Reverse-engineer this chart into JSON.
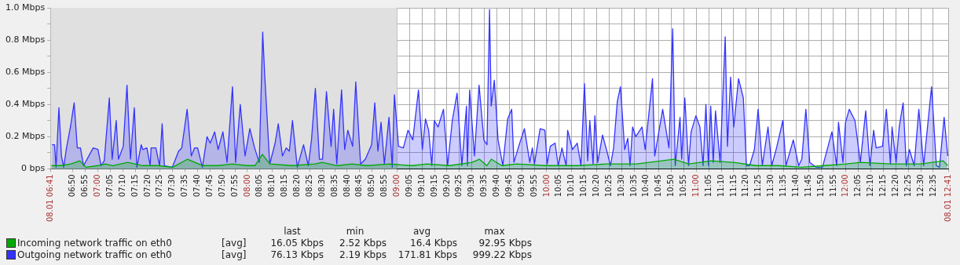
{
  "chart_data": {
    "type": "area",
    "xlim": [
      6.6833,
      12.6833
    ],
    "xticks": [
      {
        "value": 6.6833,
        "label": "08.01 06:41"
      },
      {
        "value": 6.8333,
        "label": "06:50"
      },
      {
        "value": 6.9167,
        "label": "06:55"
      },
      {
        "value": 7,
        "label": "07:00"
      },
      {
        "value": 7.0833,
        "label": "07:05"
      },
      {
        "value": 7.1667,
        "label": "07:10"
      },
      {
        "value": 7.25,
        "label": "07:15"
      },
      {
        "value": 7.3333,
        "label": "07:20"
      },
      {
        "value": 7.4167,
        "label": "07:25"
      },
      {
        "value": 7.5,
        "label": "07:30"
      },
      {
        "value": 7.5833,
        "label": "07:35"
      },
      {
        "value": 7.6667,
        "label": "07:40"
      },
      {
        "value": 7.75,
        "label": "07:45"
      },
      {
        "value": 7.8333,
        "label": "07:50"
      },
      {
        "value": 7.9167,
        "label": "07:55"
      },
      {
        "value": 8,
        "label": "08:00"
      },
      {
        "value": 8.0833,
        "label": "08:05"
      },
      {
        "value": 8.1667,
        "label": "08:10"
      },
      {
        "value": 8.25,
        "label": "08:15"
      },
      {
        "value": 8.3333,
        "label": "08:20"
      },
      {
        "value": 8.4167,
        "label": "08:25"
      },
      {
        "value": 8.5,
        "label": "08:30"
      },
      {
        "value": 8.5833,
        "label": "08:35"
      },
      {
        "value": 8.6667,
        "label": "08:40"
      },
      {
        "value": 8.75,
        "label": "08:45"
      },
      {
        "value": 8.8333,
        "label": "08:50"
      },
      {
        "value": 8.9167,
        "label": "08:55"
      },
      {
        "value": 9,
        "label": "09:00"
      },
      {
        "value": 9.0833,
        "label": "09:05"
      },
      {
        "value": 9.1667,
        "label": "09:10"
      },
      {
        "value": 9.25,
        "label": "09:15"
      },
      {
        "value": 9.3333,
        "label": "09:20"
      },
      {
        "value": 9.4167,
        "label": "09:25"
      },
      {
        "value": 9.5,
        "label": "09:30"
      },
      {
        "value": 9.5833,
        "label": "09:35"
      },
      {
        "value": 9.6667,
        "label": "09:40"
      },
      {
        "value": 9.75,
        "label": "09:45"
      },
      {
        "value": 9.8333,
        "label": "09:50"
      },
      {
        "value": 9.9167,
        "label": "09:55"
      },
      {
        "value": 10,
        "label": "10:00"
      },
      {
        "value": 10.0833,
        "label": "10:05"
      },
      {
        "value": 10.1667,
        "label": "10:10"
      },
      {
        "value": 10.25,
        "label": "10:15"
      },
      {
        "value": 10.3333,
        "label": "10:20"
      },
      {
        "value": 10.4167,
        "label": "10:25"
      },
      {
        "value": 10.5,
        "label": "10:30"
      },
      {
        "value": 10.5833,
        "label": "10:35"
      },
      {
        "value": 10.6667,
        "label": "10:40"
      },
      {
        "value": 10.75,
        "label": "10:45"
      },
      {
        "value": 10.8333,
        "label": "10:50"
      },
      {
        "value": 10.9167,
        "label": "10:55"
      },
      {
        "value": 11,
        "label": "11:00"
      },
      {
        "value": 11.0833,
        "label": "11:05"
      },
      {
        "value": 11.1667,
        "label": "11:10"
      },
      {
        "value": 11.25,
        "label": "11:15"
      },
      {
        "value": 11.3333,
        "label": "11:20"
      },
      {
        "value": 11.4167,
        "label": "11:25"
      },
      {
        "value": 11.5,
        "label": "11:30"
      },
      {
        "value": 11.5833,
        "label": "11:35"
      },
      {
        "value": 11.6667,
        "label": "11:40"
      },
      {
        "value": 11.75,
        "label": "11:45"
      },
      {
        "value": 11.8333,
        "label": "11:50"
      },
      {
        "value": 11.9167,
        "label": "11:55"
      },
      {
        "value": 12,
        "label": "12:00"
      },
      {
        "value": 12.0833,
        "label": "12:05"
      },
      {
        "value": 12.1667,
        "label": "12:10"
      },
      {
        "value": 12.25,
        "label": "12:15"
      },
      {
        "value": 12.3333,
        "label": "12:20"
      },
      {
        "value": 12.4167,
        "label": "12:25"
      },
      {
        "value": 12.5,
        "label": "12:30"
      },
      {
        "value": 12.5833,
        "label": "12:35"
      },
      {
        "value": 12.6833,
        "label": "08.01 12:41"
      }
    ],
    "ylim": [
      0,
      1.0
    ],
    "yticks": [
      {
        "value": 0,
        "label": "0 bps"
      },
      {
        "value": 0.1,
        "label": null
      },
      {
        "value": 0.2,
        "label": "0.2 Mbps"
      },
      {
        "value": 0.3,
        "label": null
      },
      {
        "value": 0.4,
        "label": "0.4 Mbps"
      },
      {
        "value": 0.5,
        "label": null
      },
      {
        "value": 0.6,
        "label": "0.6 Mbps"
      },
      {
        "value": 0.7,
        "label": null
      },
      {
        "value": 0.8,
        "label": "0.8 Mbps"
      },
      {
        "value": 0.9,
        "label": null
      },
      {
        "value": 1.0,
        "label": "1.0 Mbps"
      }
    ],
    "grid": true,
    "legend": "bottom",
    "bands": [
      {
        "axis": "x",
        "from": 6.6833,
        "to": 9,
        "color": "#e0e0e0"
      }
    ],
    "annotations": [
      "last",
      "min",
      "avg",
      "max",
      "[avg]",
      "16.05 Kbps",
      "2.52 Kbps",
      "16.4 Kbps",
      "92.95 Kbps",
      "[avg]",
      "76.13 Kbps",
      "2.19 Kbps",
      "171.81 Kbps",
      "999.22 Kbps"
    ],
    "series": [
      {
        "name": "Outgoing network traffic on eth0",
        "color": "#3333ff",
        "x": [
          6.694,
          6.711,
          6.721,
          6.74,
          6.757,
          6.772,
          6.789,
          6.817,
          6.842,
          6.863,
          6.884,
          6.905,
          6.969,
          7.001,
          7.022,
          7.043,
          7.077,
          7.096,
          7.123,
          7.138,
          7.17,
          7.195,
          7.218,
          7.244,
          7.261,
          7.29,
          7.301,
          7.328,
          7.35,
          7.356,
          7.388,
          7.413,
          7.43,
          7.445,
          7.498,
          7.54,
          7.561,
          7.597,
          7.625,
          7.646,
          7.667,
          7.699,
          7.73,
          7.751,
          7.781,
          7.804,
          7.836,
          7.864,
          7.9,
          7.921,
          7.952,
          7.984,
          8.016,
          8.048,
          8.079,
          8.102,
          8.115,
          8.149,
          8.185,
          8.206,
          8.234,
          8.259,
          8.28,
          8.301,
          8.333,
          8.375,
          8.407,
          8.428,
          8.454,
          8.481,
          8.502,
          8.528,
          8.559,
          8.576,
          8.597,
          8.629,
          8.65,
          8.671,
          8.703,
          8.724,
          8.756,
          8.788,
          8.83,
          8.851,
          8.872,
          8.893,
          8.915,
          8.946,
          8.968,
          8.982,
          9.01,
          9.042,
          9.073,
          9.105,
          9.143,
          9.169,
          9.19,
          9.211,
          9.232,
          9.249,
          9.274,
          9.31,
          9.338,
          9.369,
          9.401,
          9.433,
          9.464,
          9.47,
          9.485,
          9.517,
          9.548,
          9.58,
          9.601,
          9.618,
          9.629,
          9.65,
          9.675,
          9.707,
          9.739,
          9.766,
          9.781,
          9.813,
          9.851,
          9.887,
          9.904,
          9.918,
          9.956,
          9.988,
          10.003,
          10.024,
          10.056,
          10.077,
          10.102,
          10.13,
          10.14,
          10.172,
          10.204,
          10.229,
          10.252,
          10.274,
          10.288,
          10.31,
          10.322,
          10.341,
          10.373,
          10.405,
          10.426,
          10.447,
          10.472,
          10.493,
          10.521,
          10.542,
          10.557,
          10.574,
          10.595,
          10.637,
          10.658,
          10.707,
          10.722,
          10.775,
          10.817,
          10.842,
          10.859,
          10.891,
          10.902,
          10.923,
          10.948,
          10.965,
          10.997,
          11.024,
          11.045,
          11.064,
          11.081,
          11.096,
          11.113,
          11.128,
          11.159,
          11.193,
          11.208,
          11.229,
          11.25,
          11.282,
          11.314,
          11.335,
          11.356,
          11.388,
          11.413,
          11.441,
          11.479,
          11.504,
          11.536,
          11.578,
          11.599,
          11.648,
          11.684,
          11.705,
          11.732,
          11.758,
          11.8,
          11.843,
          11.906,
          11.938,
          11.95,
          11.98,
          11.997,
          12.022,
          12.06,
          12.096,
          12.132,
          12.16,
          12.185,
          12.202,
          12.244,
          12.27,
          12.297,
          12.308,
          12.335,
          12.356,
          12.382,
          12.403,
          12.424,
          12.456,
          12.487,
          12.519,
          12.572,
          12.604,
          12.625,
          12.656,
          12.68
        ],
        "values": [
          0.15,
          0.15,
          0.01,
          0.38,
          0.08,
          0.01,
          0.12,
          0.26,
          0.41,
          0.13,
          0.13,
          0.02,
          0.13,
          0.12,
          0.02,
          0.05,
          0.44,
          0.06,
          0.3,
          0.06,
          0.14,
          0.52,
          0.06,
          0.38,
          0.01,
          0.15,
          0.12,
          0.13,
          0.02,
          0.13,
          0.13,
          0.02,
          0.28,
          0.02,
          0.01,
          0.11,
          0.13,
          0.37,
          0.08,
          0.13,
          0.13,
          0.01,
          0.2,
          0.16,
          0.23,
          0.12,
          0.23,
          0.04,
          0.51,
          0.04,
          0.4,
          0.08,
          0.25,
          0.13,
          0.04,
          0.85,
          0.59,
          0.03,
          0.16,
          0.28,
          0.08,
          0.13,
          0.11,
          0.3,
          0.01,
          0.15,
          0.02,
          0.18,
          0.5,
          0.06,
          0.06,
          0.48,
          0.14,
          0.37,
          0.03,
          0.49,
          0.12,
          0.24,
          0.14,
          0.54,
          0.03,
          0.06,
          0.15,
          0.41,
          0.11,
          0.29,
          0.03,
          0.32,
          0.01,
          0.46,
          0.14,
          0.13,
          0.24,
          0.18,
          0.49,
          0.12,
          0.31,
          0.24,
          0.02,
          0.3,
          0.26,
          0.37,
          0.02,
          0.3,
          0.47,
          0.02,
          0.39,
          0.02,
          0.49,
          0.08,
          0.52,
          0.18,
          0.15,
          0.99,
          0.39,
          0.55,
          0.18,
          0.02,
          0.31,
          0.37,
          0.04,
          0.14,
          0.25,
          0.04,
          0.13,
          0.03,
          0.25,
          0.24,
          0.03,
          0.14,
          0.16,
          0.02,
          0.13,
          0.02,
          0.24,
          0.12,
          0.16,
          0.02,
          0.53,
          0.05,
          0.3,
          0.03,
          0.33,
          0.04,
          0.21,
          0.1,
          0.02,
          0.13,
          0.42,
          0.51,
          0.12,
          0.19,
          0.02,
          0.26,
          0.2,
          0.26,
          0.12,
          0.56,
          0.08,
          0.37,
          0.13,
          0.87,
          0.02,
          0.32,
          0.06,
          0.44,
          0.02,
          0.23,
          0.33,
          0.26,
          0.02,
          0.4,
          0.02,
          0.39,
          0.04,
          0.36,
          0.04,
          0.82,
          0.14,
          0.57,
          0.26,
          0.56,
          0.44,
          0.02,
          0.02,
          0.12,
          0.37,
          0.02,
          0.26,
          0.02,
          0.13,
          0.3,
          0.02,
          0.18,
          0.02,
          0.06,
          0.37,
          0.04,
          0.01,
          0.01,
          0.23,
          0.02,
          0.29,
          0.04,
          0.29,
          0.37,
          0.3,
          0.04,
          0.36,
          0.02,
          0.24,
          0.13,
          0.14,
          0.37,
          0.03,
          0.26,
          0.04,
          0.26,
          0.41,
          0.02,
          0.12,
          0.02,
          0.37,
          0.02,
          0.51,
          0.02,
          0.01,
          0.32,
          0.08
        ]
      },
      {
        "name": "Incoming network traffic on eth0",
        "color": "#00aa00",
        "x": [
          6.69,
          6.75,
          6.82,
          6.88,
          6.92,
          7.0,
          7.05,
          7.1,
          7.2,
          7.3,
          7.4,
          7.5,
          7.6,
          7.7,
          7.8,
          7.9,
          8.0,
          8.05,
          8.1,
          8.15,
          8.3,
          8.45,
          8.5,
          8.6,
          8.7,
          8.8,
          8.95,
          9.1,
          9.2,
          9.35,
          9.5,
          9.55,
          9.6,
          9.63,
          9.7,
          9.8,
          10.0,
          10.2,
          10.4,
          10.6,
          10.85,
          10.95,
          11.1,
          11.25,
          11.4,
          11.55,
          11.7,
          11.85,
          12.0,
          12.1,
          12.3,
          12.5,
          12.65,
          12.68
        ],
        "values": [
          0.02,
          0.02,
          0.03,
          0.05,
          0.01,
          0.02,
          0.03,
          0.02,
          0.04,
          0.02,
          0.02,
          0.01,
          0.06,
          0.02,
          0.02,
          0.03,
          0.02,
          0.02,
          0.09,
          0.03,
          0.02,
          0.03,
          0.04,
          0.02,
          0.03,
          0.02,
          0.03,
          0.02,
          0.03,
          0.02,
          0.04,
          0.06,
          0.02,
          0.06,
          0.02,
          0.03,
          0.02,
          0.02,
          0.03,
          0.03,
          0.06,
          0.03,
          0.05,
          0.04,
          0.02,
          0.02,
          0.01,
          0.02,
          0.03,
          0.04,
          0.03,
          0.03,
          0.05,
          0.02
        ]
      }
    ]
  }
}
